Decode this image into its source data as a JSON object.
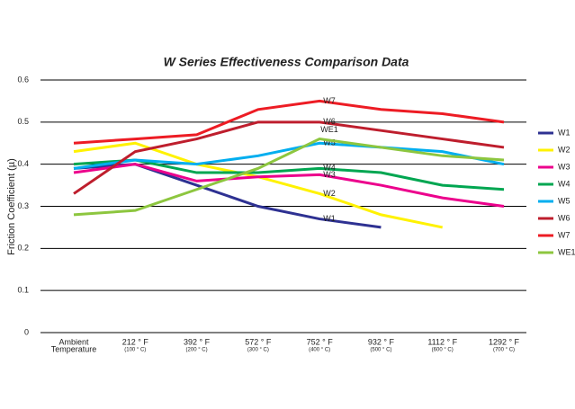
{
  "chart_data": {
    "type": "line",
    "title": "W Series Effectiveness Comparison Data",
    "y_label": "Friction Coefficient (µ)",
    "categories": [
      [
        "Ambient",
        "Temperature"
      ],
      [
        "212 ° F",
        "(100 ° C)"
      ],
      [
        "392 ° F",
        "(200 ° C)"
      ],
      [
        "572 ° F",
        "(300 ° C)"
      ],
      [
        "752 ° F",
        "(400 ° C)"
      ],
      [
        "932 ° F",
        "(500 ° C)"
      ],
      [
        "1112 ° F",
        "(600 ° C)"
      ],
      [
        "1292 ° F",
        "(700 ° C)"
      ]
    ],
    "ylim": [
      0,
      0.6
    ],
    "yticks": [
      0,
      0.1,
      0.2,
      0.3,
      0.4,
      0.5,
      0.6
    ],
    "grid": true,
    "legend": "right",
    "series": [
      {
        "name": "W1",
        "color": "#2e3192",
        "values": [
          0.39,
          0.4,
          0.35,
          0.3,
          0.27,
          0.25,
          null,
          null
        ]
      },
      {
        "name": "W2",
        "color": "#fff200",
        "values": [
          0.43,
          0.45,
          0.4,
          0.37,
          0.33,
          0.28,
          0.25,
          null
        ]
      },
      {
        "name": "W3",
        "color": "#ec008c",
        "values": [
          0.38,
          0.4,
          0.36,
          0.37,
          0.375,
          0.35,
          0.32,
          0.3
        ]
      },
      {
        "name": "W4",
        "color": "#00a651",
        "values": [
          0.4,
          0.41,
          0.38,
          0.38,
          0.39,
          0.38,
          0.35,
          0.34
        ]
      },
      {
        "name": "W5",
        "color": "#00aeef",
        "values": [
          0.39,
          0.41,
          0.4,
          0.42,
          0.45,
          0.44,
          0.43,
          0.4
        ]
      },
      {
        "name": "W6",
        "color": "#be1e2d",
        "values": [
          0.33,
          0.43,
          0.46,
          0.5,
          0.5,
          0.48,
          0.46,
          0.44
        ]
      },
      {
        "name": "W7",
        "color": "#ed1c24",
        "values": [
          0.45,
          0.46,
          0.47,
          0.53,
          0.55,
          0.53,
          0.52,
          0.5
        ]
      },
      {
        "name": "WE1",
        "color": "#8dc63f",
        "values": [
          0.28,
          0.29,
          0.34,
          0.39,
          0.46,
          0.44,
          0.42,
          0.41
        ]
      }
    ]
  }
}
